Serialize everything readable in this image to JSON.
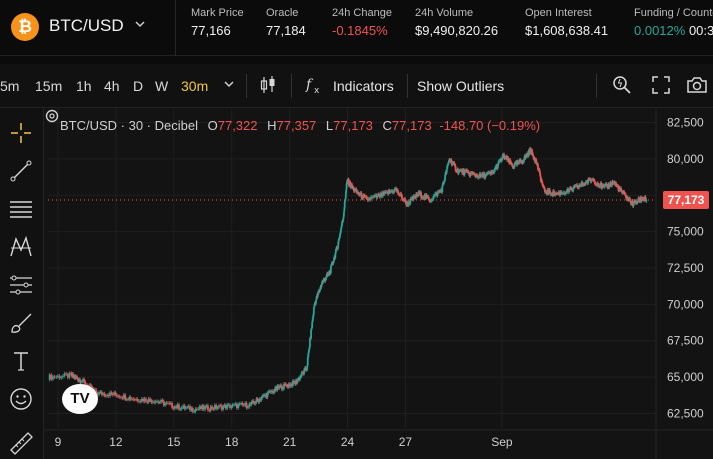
{
  "header": {
    "pair": "BTC/USD",
    "coin_symbol": "₿",
    "stats": [
      {
        "label": "Mark Price",
        "value": "77,166",
        "tone": "neutral"
      },
      {
        "label": "Oracle",
        "value": "77,184",
        "tone": "neutral"
      },
      {
        "label": "24h Change",
        "value": "-0.1845%",
        "tone": "negative"
      },
      {
        "label": "24h Volume",
        "value": "$9,490,820.26",
        "tone": "neutral"
      },
      {
        "label": "Open Interest",
        "value": "$1,608,638.41",
        "tone": "neutral"
      },
      {
        "label": "Funding / Countdown",
        "value": "0.0012%",
        "value2": "00:3",
        "tone": "positive"
      }
    ]
  },
  "toolbar": {
    "timeframes": [
      "5m",
      "15m",
      "1h",
      "4h",
      "D",
      "W",
      "30m"
    ],
    "active_timeframe": "30m",
    "indicators_label": "Indicators",
    "outliers_label": "Show Outliers"
  },
  "chart": {
    "legend_title": "BTC/USD · 30 · Decibel",
    "open_label": "O",
    "open": "77,322",
    "high_label": "H",
    "high": "77,357",
    "low_label": "L",
    "low": "77,173",
    "close_label": "C",
    "close": "77,173",
    "change": "-148.70 (−0.19%)",
    "last_price": "77,173",
    "logo_text": "TV",
    "colors": {
      "up": "#26a69a",
      "down": "#ef5350",
      "background": "#131313",
      "grid": "#1f1f1f"
    }
  },
  "chart_data": {
    "type": "line",
    "title": "BTC/USD · 30 · Decibel",
    "xlabel": "",
    "ylabel": "",
    "x_ticks": [
      "9",
      "12",
      "15",
      "18",
      "21",
      "24",
      "27",
      "Sep"
    ],
    "y_ticks": [
      82500,
      80000,
      77500,
      75000,
      72500,
      70000,
      67500,
      65000,
      62500
    ],
    "ylim": [
      61500,
      83500
    ],
    "grid": true,
    "last_price": 77173,
    "series": [
      {
        "values": [
          [
            0,
            65000
          ],
          [
            1.2,
            65100
          ],
          [
            1.7,
            64800
          ],
          [
            2.5,
            63900
          ],
          [
            3.5,
            63800
          ],
          [
            4.5,
            63500
          ],
          [
            5.5,
            63400
          ],
          [
            6.5,
            63000
          ],
          [
            7.5,
            62800
          ],
          [
            8.5,
            62900
          ],
          [
            9.5,
            63000
          ],
          [
            10.5,
            63100
          ],
          [
            11.2,
            63700
          ],
          [
            12.0,
            64300
          ],
          [
            12.8,
            64600
          ],
          [
            13.4,
            65600
          ],
          [
            13.8,
            70000
          ],
          [
            14.2,
            71500
          ],
          [
            14.6,
            72200
          ],
          [
            15.0,
            74000
          ],
          [
            15.3,
            76000
          ],
          [
            15.5,
            78500
          ],
          [
            15.9,
            77800
          ],
          [
            16.5,
            77200
          ],
          [
            17.3,
            77500
          ],
          [
            18.0,
            77900
          ],
          [
            18.6,
            76900
          ],
          [
            19.2,
            77600
          ],
          [
            19.8,
            77200
          ],
          [
            20.4,
            77900
          ],
          [
            20.8,
            80000
          ],
          [
            21.2,
            79200
          ],
          [
            21.8,
            79000
          ],
          [
            22.4,
            78800
          ],
          [
            23.0,
            79000
          ],
          [
            23.6,
            80200
          ],
          [
            24.1,
            79500
          ],
          [
            24.6,
            79900
          ],
          [
            25.0,
            80600
          ],
          [
            25.3,
            79800
          ],
          [
            25.7,
            77800
          ],
          [
            26.3,
            77600
          ],
          [
            27.0,
            77800
          ],
          [
            27.6,
            78200
          ],
          [
            28.2,
            78600
          ],
          [
            28.8,
            78000
          ],
          [
            29.3,
            78400
          ],
          [
            29.8,
            77600
          ],
          [
            30.3,
            76900
          ],
          [
            30.8,
            77300
          ],
          [
            31.0,
            77173
          ]
        ]
      }
    ]
  }
}
